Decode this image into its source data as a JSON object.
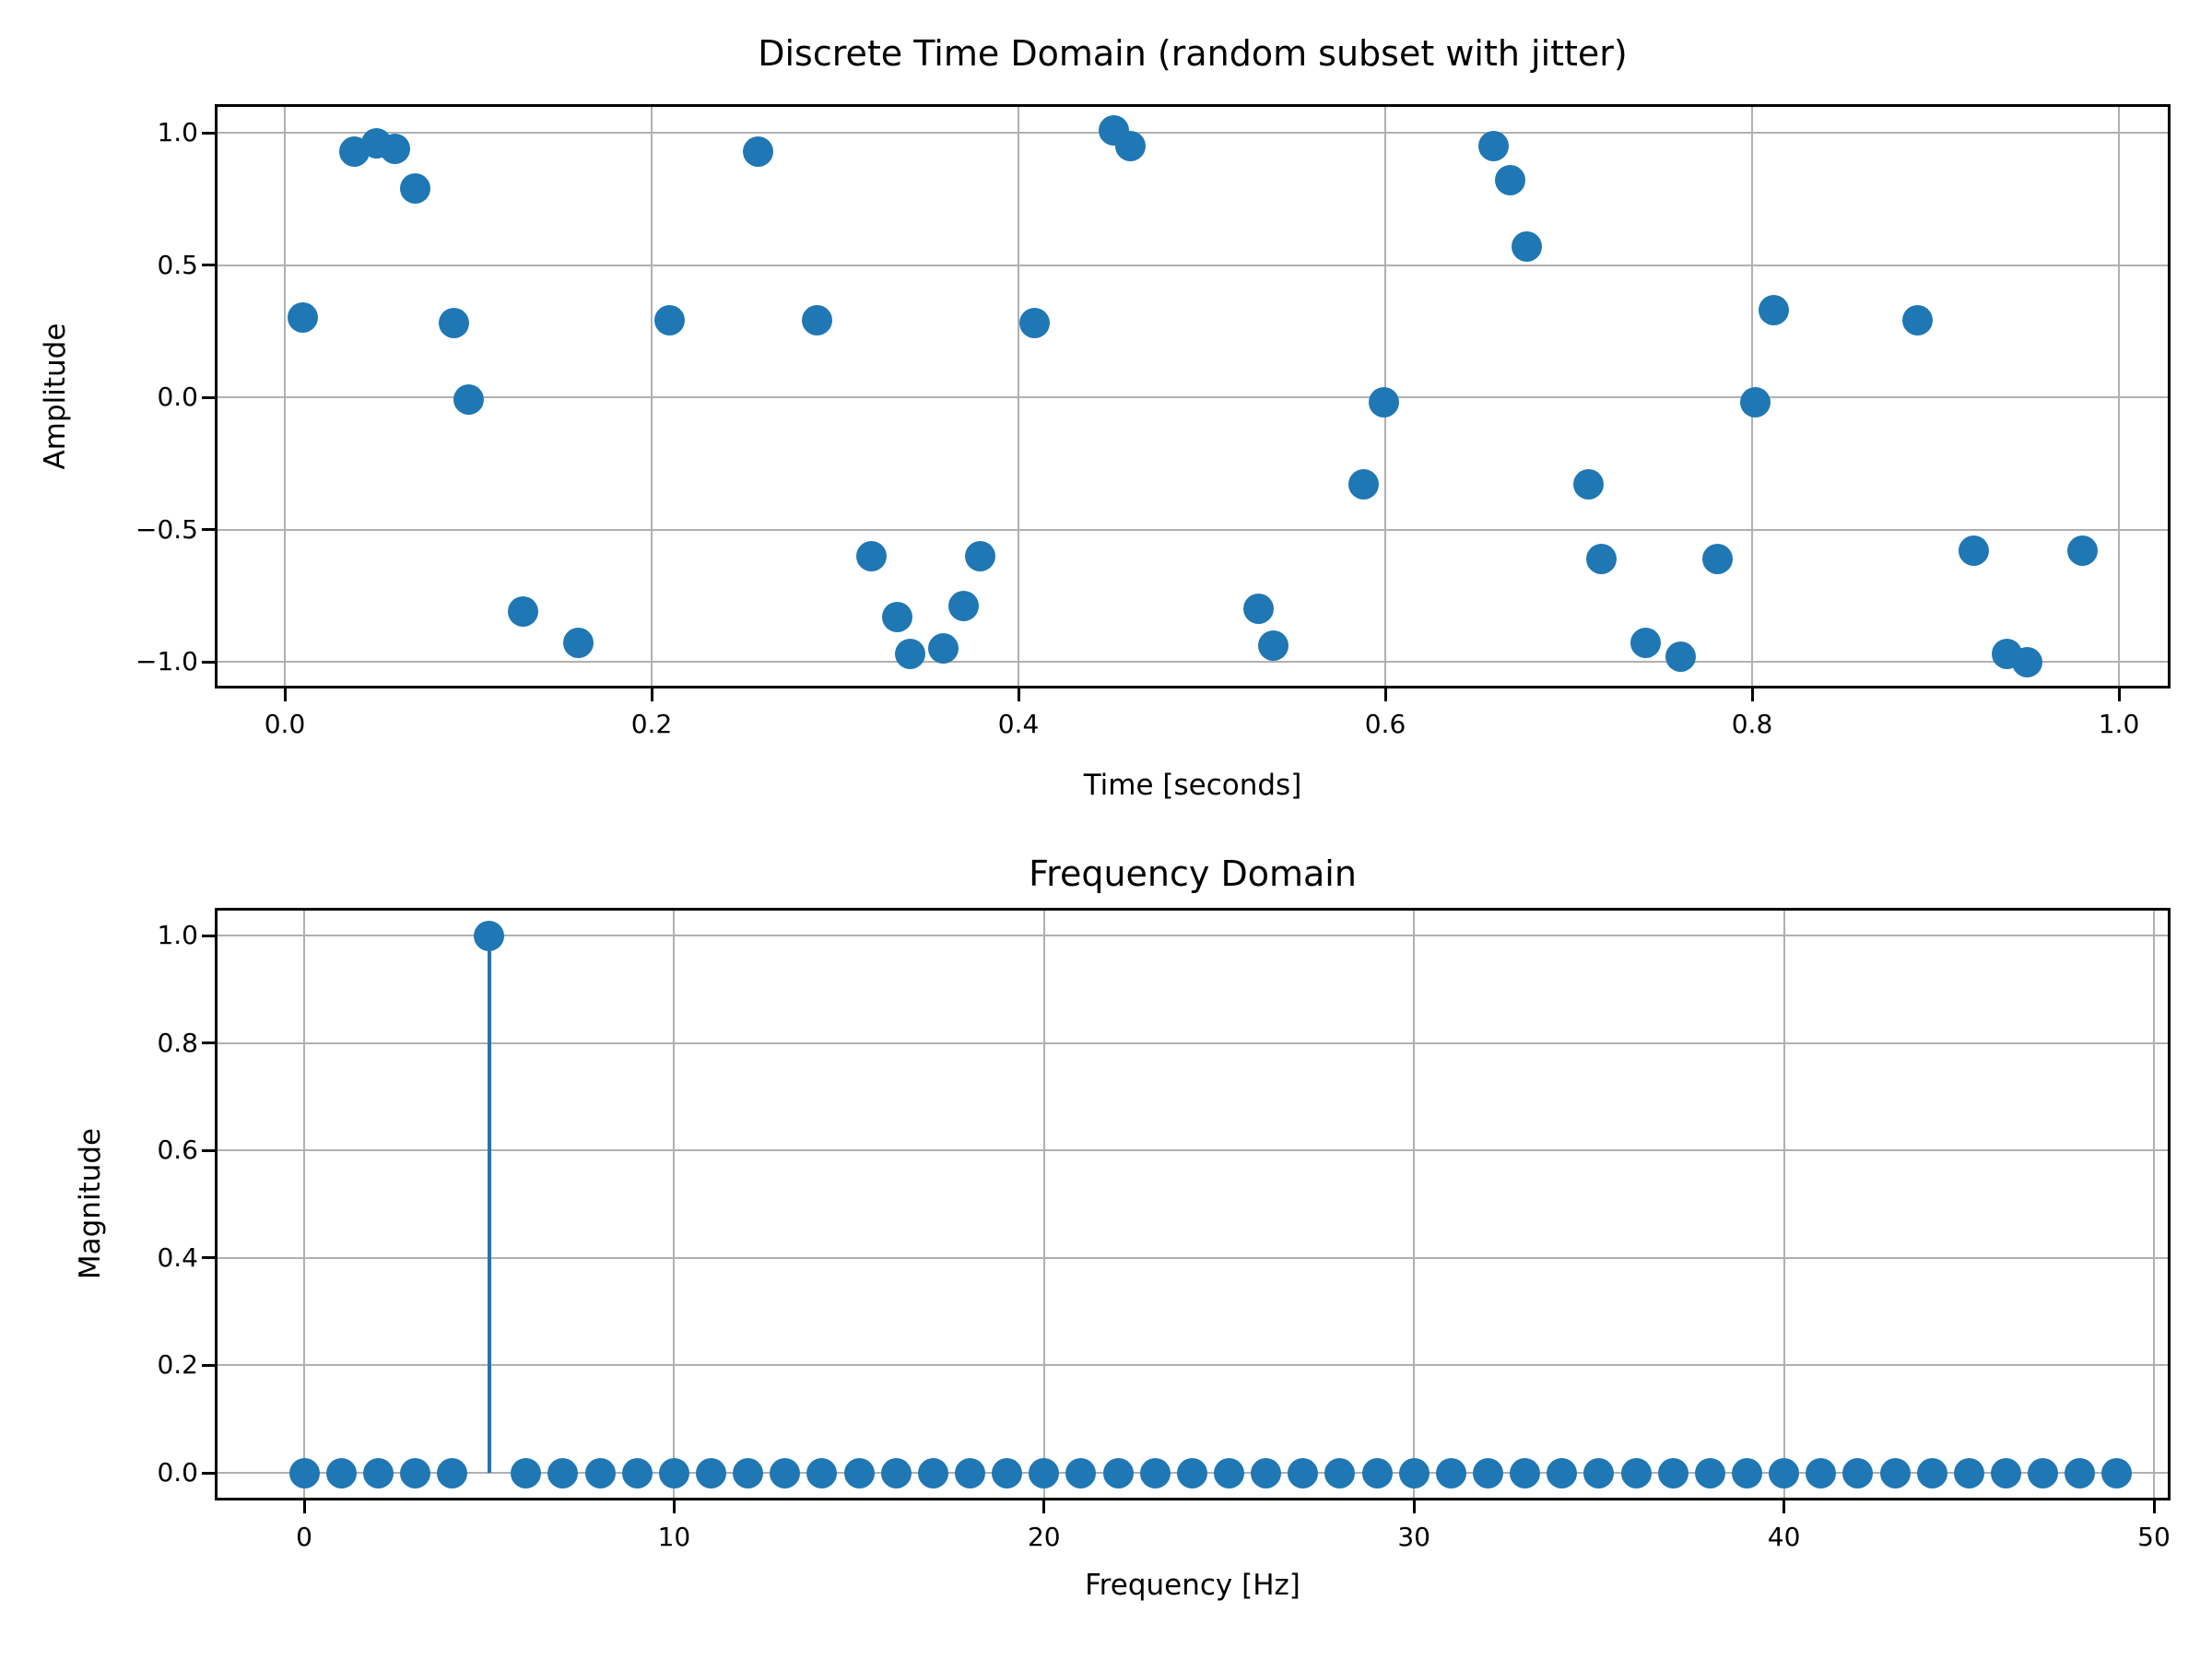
{
  "figure": {
    "background_color": "#ffffff",
    "marker_color": "#1f77b4",
    "grid_color": "#b0b0b0",
    "spine_color": "#000000",
    "text_color": "#000000"
  },
  "chart_data": [
    {
      "type": "scatter",
      "title": "Discrete Time Domain (random subset with jitter)",
      "xlabel": "Time [seconds]",
      "ylabel": "Amplitude",
      "xlim": [
        -0.04,
        1.03
      ],
      "ylim": [
        -1.1,
        1.1
      ],
      "grid": true,
      "xticks": [
        0.0,
        0.2,
        0.4,
        0.6,
        0.8,
        1.0
      ],
      "xtick_labels": [
        "0.0",
        "0.2",
        "0.4",
        "0.6",
        "0.8",
        "1.0"
      ],
      "yticks": [
        1.0,
        0.5,
        0.0,
        -0.5,
        -1.0
      ],
      "ytick_labels": [
        "1.0",
        "0.5",
        "0.0",
        "−0.5",
        "−1.0"
      ],
      "points": [
        [
          0.01,
          0.3
        ],
        [
          0.038,
          0.93
        ],
        [
          0.05,
          0.96
        ],
        [
          0.06,
          0.94
        ],
        [
          0.071,
          0.79
        ],
        [
          0.092,
          0.28
        ],
        [
          0.1,
          -0.01
        ],
        [
          0.13,
          -0.81
        ],
        [
          0.16,
          -0.93
        ],
        [
          0.21,
          0.29
        ],
        [
          0.258,
          0.93
        ],
        [
          0.29,
          0.29
        ],
        [
          0.32,
          -0.6
        ],
        [
          0.334,
          -0.83
        ],
        [
          0.341,
          -0.97
        ],
        [
          0.359,
          -0.95
        ],
        [
          0.37,
          -0.79
        ],
        [
          0.379,
          -0.6
        ],
        [
          0.409,
          0.28
        ],
        [
          0.452,
          1.01
        ],
        [
          0.461,
          0.95
        ],
        [
          0.531,
          -0.8
        ],
        [
          0.539,
          -0.94
        ],
        [
          0.588,
          -0.33
        ],
        [
          0.599,
          -0.02
        ],
        [
          0.659,
          0.95
        ],
        [
          0.668,
          0.82
        ],
        [
          0.677,
          0.57
        ],
        [
          0.711,
          -0.33
        ],
        [
          0.718,
          -0.61
        ],
        [
          0.742,
          -0.93
        ],
        [
          0.761,
          -0.98
        ],
        [
          0.781,
          -0.61
        ],
        [
          0.802,
          -0.02
        ],
        [
          0.812,
          0.33
        ],
        [
          0.89,
          0.29
        ],
        [
          0.921,
          -0.58
        ],
        [
          0.939,
          -0.97
        ],
        [
          0.95,
          -1.0
        ],
        [
          0.98,
          -0.58
        ]
      ]
    },
    {
      "type": "stem",
      "title": "Frequency Domain",
      "xlabel": "Frequency [Hz]",
      "ylabel": "Magnitude",
      "xlim": [
        -2.4,
        50.5
      ],
      "ylim": [
        -0.05,
        1.05
      ],
      "grid": true,
      "xticks": [
        0,
        10,
        20,
        30,
        40,
        50
      ],
      "xtick_labels": [
        "0",
        "10",
        "20",
        "30",
        "40",
        "50"
      ],
      "yticks": [
        0.0,
        0.2,
        0.4,
        0.6,
        0.8,
        1.0
      ],
      "ytick_labels": [
        "0.0",
        "0.2",
        "0.4",
        "0.6",
        "0.8",
        "1.0"
      ],
      "peak": {
        "frequency_hz": 5,
        "magnitude": 1.0
      },
      "zero_magnitude_frequencies_hz": [
        0,
        1,
        2,
        3,
        4,
        6,
        7,
        8,
        9,
        10,
        11,
        12,
        13,
        14,
        15,
        16,
        17,
        18,
        19,
        20,
        21,
        22,
        23,
        24,
        25,
        26,
        27,
        28,
        29,
        30,
        31,
        32,
        33,
        34,
        35,
        36,
        37,
        38,
        39,
        40,
        41,
        42,
        43,
        44,
        45,
        46,
        47,
        48,
        49
      ],
      "baseline_magnitude": 0.0
    }
  ]
}
